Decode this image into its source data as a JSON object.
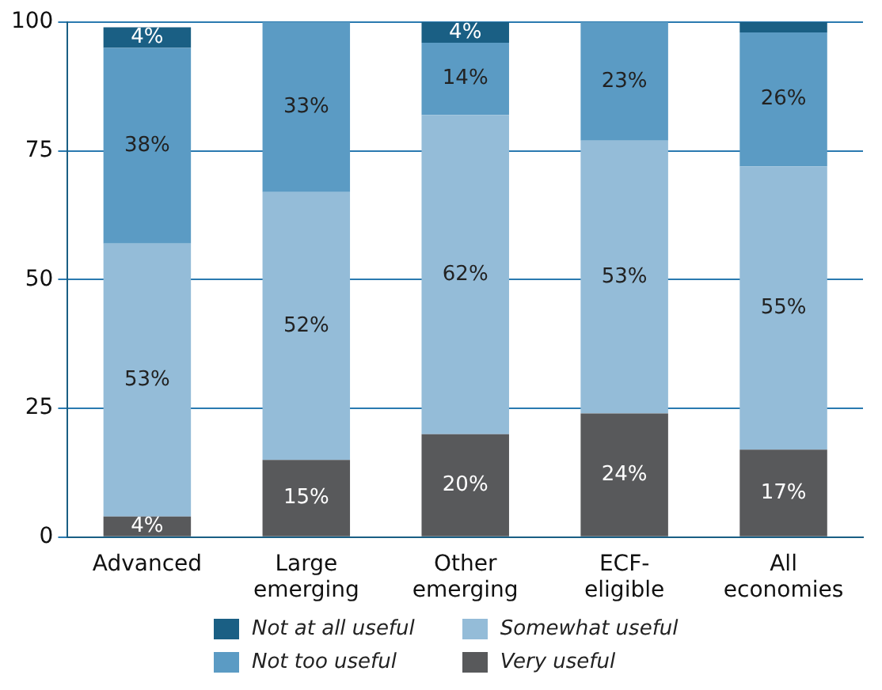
{
  "chart_data": {
    "type": "bar",
    "stacked": true,
    "categories": [
      "Advanced",
      "Large emerging",
      "Other emerging",
      "ECF-eligible",
      "All economies"
    ],
    "series": [
      {
        "name": "Very useful",
        "color": "#58595b",
        "values": [
          4,
          15,
          20,
          24,
          17
        ],
        "value_labels": [
          "4%",
          "15%",
          "20%",
          "24%",
          "17%"
        ]
      },
      {
        "name": "Somewhat useful",
        "color": "#94bcd8",
        "values": [
          53,
          52,
          62,
          53,
          55
        ],
        "value_labels": [
          "53%",
          "52%",
          "62%",
          "53%",
          "55%"
        ]
      },
      {
        "name": "Not too useful",
        "color": "#5b9bc4",
        "values": [
          38,
          33,
          14,
          23,
          26
        ],
        "value_labels": [
          "38%",
          "33%",
          "14%",
          "23%",
          "26%"
        ]
      },
      {
        "name": "Not at all useful",
        "color": "#1a5f84",
        "values": [
          4,
          0,
          4,
          0,
          2
        ],
        "value_labels": [
          "4%",
          null,
          "4%",
          null,
          null
        ]
      }
    ],
    "ylim": [
      0,
      100
    ],
    "yticks": [
      0,
      25,
      50,
      75,
      100
    ],
    "grid": "y",
    "legend": "bottom"
  }
}
